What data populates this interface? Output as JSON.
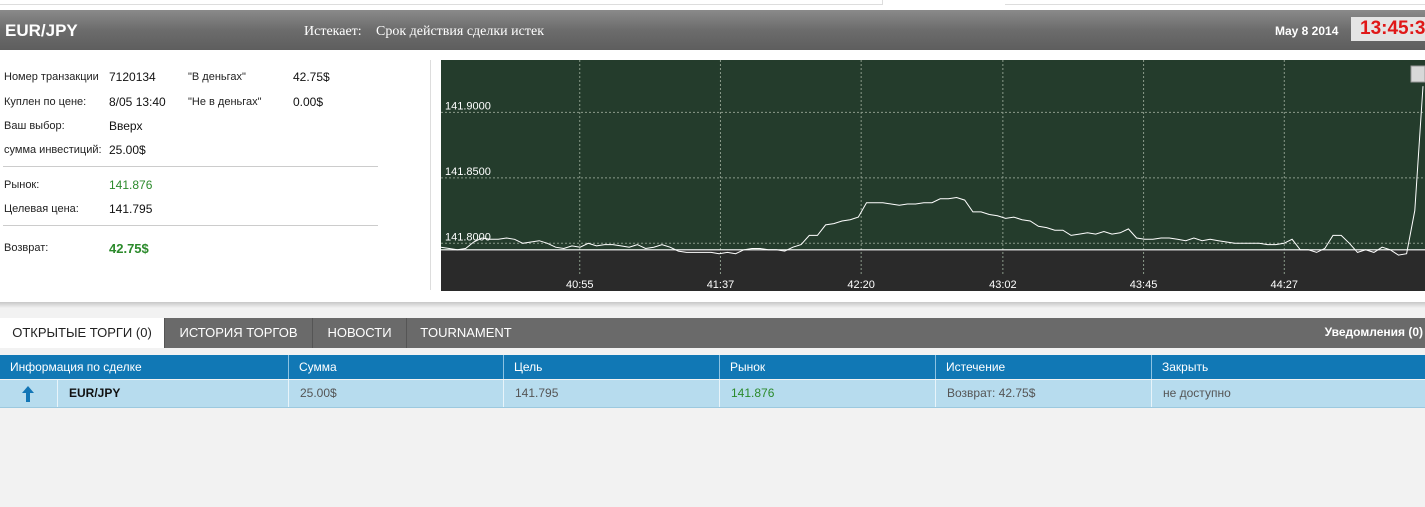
{
  "header": {
    "pair": "EUR/JPY",
    "expiry_label": "Истекает:",
    "expiry_value": "Срок действия сделки истек",
    "date": "May 8 2014",
    "clock": "13:45:3"
  },
  "details": {
    "transaction_label": "Номер транзакции",
    "transaction_value": "7120134",
    "in_money_label": "\"В деньгах\"",
    "in_money_value": "42.75$",
    "bought_label": "Куплен по цене:",
    "bought_value": "8/05 13:40",
    "out_money_label": "\"Не в деньгах\"",
    "out_money_value": "0.00$",
    "choice_label": "Ваш выбор:",
    "choice_value": "Вверх",
    "investment_label": "сумма инвестиций:",
    "investment_value": "25.00$",
    "market_label": "Рынок:",
    "market_value": "141.876",
    "target_label": "Целевая цена:",
    "target_value": "141.795",
    "return_label": "Возврат:",
    "return_value": "42.75$"
  },
  "chart_data": {
    "type": "line",
    "ylim": [
      141.775,
      141.94
    ],
    "target_line": 141.795,
    "y_ticks": [
      "141.9000",
      "141.8500",
      "141.8000"
    ],
    "y_tick_values": [
      141.9,
      141.85,
      141.8
    ],
    "x_ticks": [
      "40:55",
      "41:37",
      "42:20",
      "43:02",
      "43:45",
      "44:27"
    ],
    "x_tick_frac": [
      0.141,
      0.284,
      0.427,
      0.571,
      0.714,
      0.857
    ],
    "colors": {
      "upper_bg": "#243c2c",
      "lower_bg": "#2a2a2a",
      "line": "#ffffff"
    },
    "series": [
      {
        "values": [
          141.797,
          141.796,
          141.795,
          141.796,
          141.801,
          141.804,
          141.803,
          141.803,
          141.804,
          141.803,
          141.8,
          141.801,
          141.802,
          141.8,
          141.797,
          141.796,
          141.798,
          141.797,
          141.8,
          141.798,
          141.799,
          141.799,
          141.798,
          141.797,
          141.799,
          141.796,
          141.797,
          141.799,
          141.797,
          141.794,
          141.793,
          141.793,
          141.793,
          141.793,
          141.792,
          141.793,
          141.792,
          141.795,
          141.796,
          141.796,
          141.795,
          141.795,
          141.794,
          141.797,
          141.799,
          141.806,
          141.806,
          141.814,
          141.815,
          141.817,
          141.818,
          141.82,
          141.831,
          141.831,
          141.831,
          141.83,
          141.829,
          141.83,
          141.83,
          141.831,
          141.831,
          141.834,
          141.834,
          141.835,
          141.833,
          141.824,
          141.824,
          141.822,
          141.821,
          141.819,
          141.82,
          141.818,
          141.817,
          141.813,
          141.812,
          141.81,
          141.81,
          141.806,
          141.807,
          141.808,
          141.807,
          141.809,
          141.807,
          141.808,
          141.811,
          141.804,
          141.803,
          141.803,
          141.804,
          141.804,
          141.803,
          141.802,
          141.804,
          141.802,
          141.803,
          141.802,
          141.801,
          141.8,
          141.8,
          141.8,
          141.8,
          141.799,
          141.799,
          141.8,
          141.803,
          141.795,
          141.795,
          141.793,
          141.796,
          141.806,
          141.806,
          141.8,
          141.793,
          141.795,
          141.793,
          141.797,
          141.795,
          141.791,
          141.792,
          141.825,
          141.92
        ]
      }
    ]
  },
  "tabs": [
    {
      "label": "ОТКРЫТЫЕ ТОРГИ (0)"
    },
    {
      "label": "ИСТОРИЯ ТОРГОВ"
    },
    {
      "label": "НОВОСТИ"
    },
    {
      "label": "TOURNAMENT"
    }
  ],
  "notifications": "Уведомления (0)",
  "table": {
    "headers": [
      "Информация по сделке",
      "Сумма",
      "Цель",
      "Рынок",
      "Истечение",
      "Закрыть"
    ],
    "row": {
      "direction_icon": "arrow-up-icon",
      "asset": "EUR/JPY",
      "amount": "25.00$",
      "target": "141.795",
      "market": "141.876",
      "expiry": "Возврат: 42.75$",
      "close": "не доступно"
    }
  }
}
